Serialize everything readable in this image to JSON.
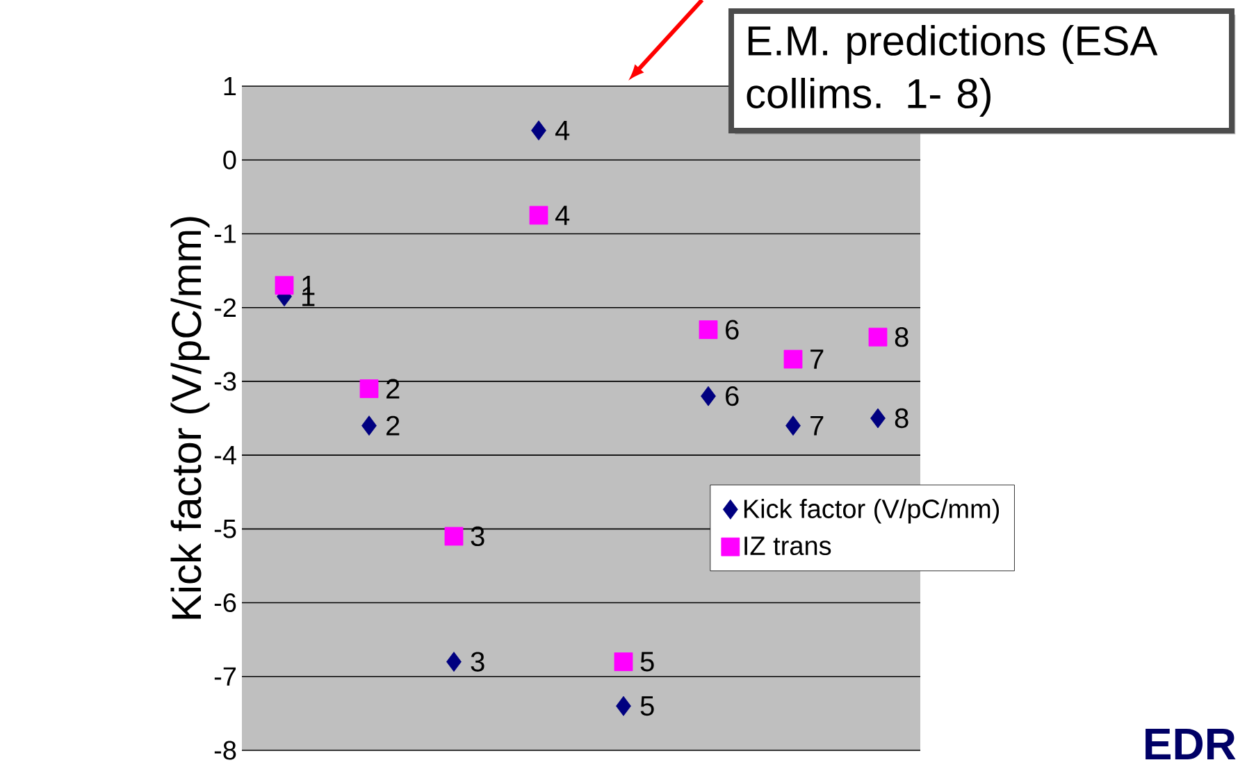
{
  "chart_data": {
    "type": "scatter",
    "ylabel": "Kick factor (V/pC/mm)",
    "categories": [
      null,
      null,
      null,
      null,
      null,
      null,
      null,
      null
    ],
    "series": [
      {
        "name": "Kick factor (V/pC/mm)",
        "color": "#000080",
        "marker": "diamond",
        "values": [
          -1.85,
          -3.6,
          -6.8,
          0.4,
          -7.4,
          -3.2,
          -3.6,
          -3.5
        ]
      },
      {
        "name": "IZ trans",
        "color": "#ff00ff",
        "marker": "square",
        "values": [
          -1.7,
          -3.1,
          -5.1,
          -0.75,
          -6.8,
          -2.3,
          -2.7,
          -2.4
        ]
      }
    ],
    "ylim": [
      -8,
      1
    ],
    "yticks": [
      -8,
      -7,
      -6,
      -5,
      -4,
      -3,
      -2,
      -1,
      0,
      1
    ],
    "grid": "y",
    "legend": "bottom right",
    "tick_labels": "y",
    "annotations": [
      "E.M. predictions (ESA collims. 1- 8)",
      "EDR",
      "1",
      "2",
      "3",
      "4",
      "5",
      "6",
      "7",
      "8",
      "1",
      "2",
      "3",
      "4",
      "5",
      "6",
      "7",
      "8"
    ]
  }
}
